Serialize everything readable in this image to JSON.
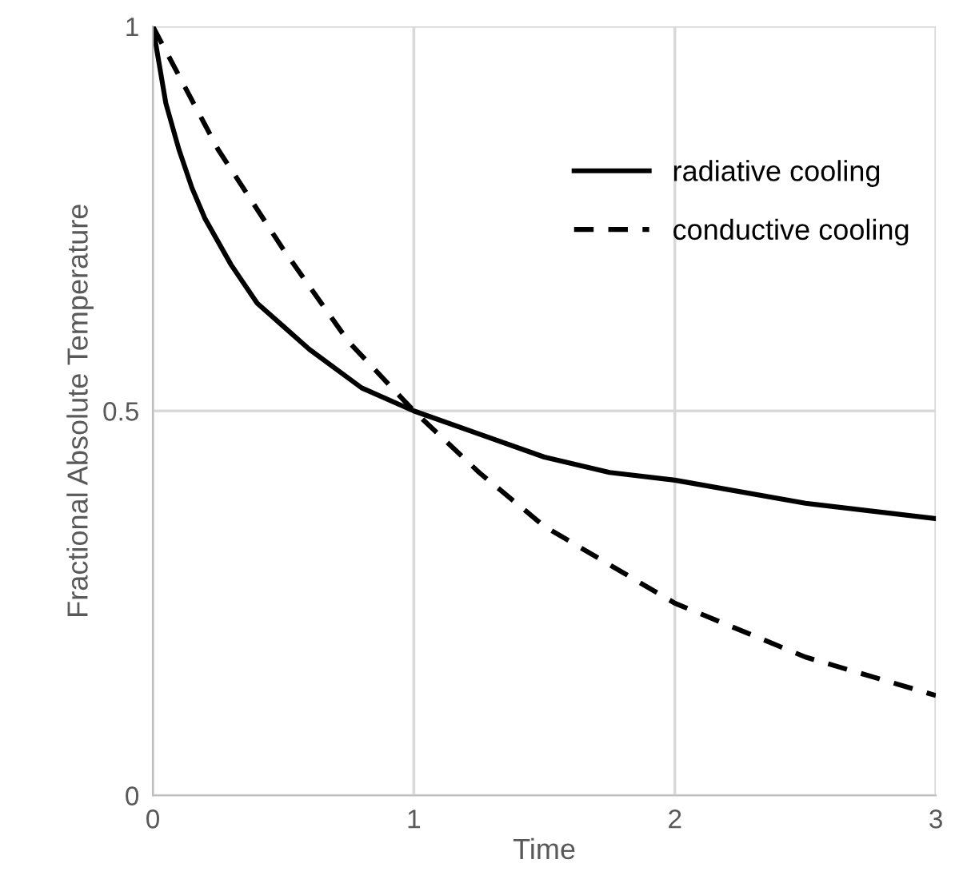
{
  "chart_data": {
    "type": "line",
    "xlabel": "Time",
    "ylabel": "Fractional Absolute Temperature",
    "xlim": [
      0,
      3
    ],
    "ylim": [
      0,
      1
    ],
    "xticks": [
      0,
      1,
      2,
      3
    ],
    "yticks": [
      0,
      0.5,
      1
    ],
    "grid": true,
    "legend": "top right",
    "marker": "none",
    "series": [
      {
        "name": "radiative cooling",
        "color": "#000000",
        "line_style": "solid",
        "x": [
          0,
          0.02,
          0.05,
          0.1,
          0.15,
          0.2,
          0.3,
          0.4,
          0.5,
          0.6,
          0.8,
          1,
          1.25,
          1.5,
          1.75,
          2,
          2.5,
          3
        ],
        "values": [
          1,
          0.96,
          0.9,
          0.84,
          0.79,
          0.75,
          0.69,
          0.64,
          0.61,
          0.58,
          0.53,
          0.5,
          0.47,
          0.44,
          0.42,
          0.41,
          0.38,
          0.36
        ]
      },
      {
        "name": "conductive cooling",
        "color": "#000000",
        "line_style": "dashed",
        "x": [
          0,
          0.25,
          0.5,
          0.75,
          1,
          1.25,
          1.5,
          1.75,
          2,
          2.5,
          3
        ],
        "values": [
          1,
          0.84,
          0.71,
          0.59,
          0.5,
          0.42,
          0.35,
          0.3,
          0.25,
          0.18,
          0.13
        ]
      }
    ]
  }
}
